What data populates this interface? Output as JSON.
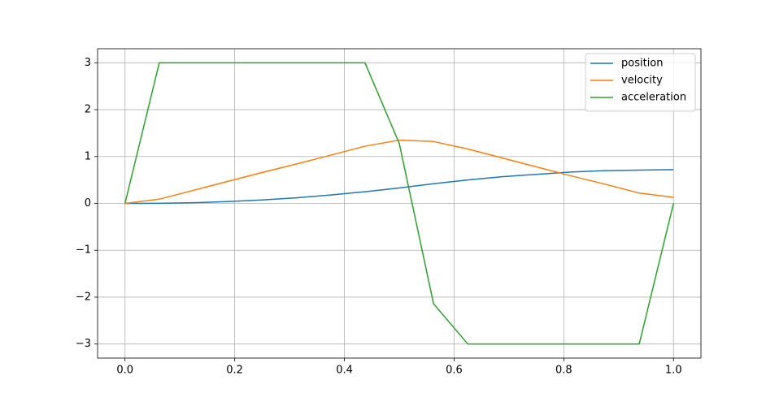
{
  "chart_data": {
    "type": "line",
    "x": [
      0,
      0.0625,
      0.125,
      0.1875,
      0.25,
      0.3125,
      0.375,
      0.4375,
      0.5,
      0.5625,
      0.625,
      0.6875,
      0.75,
      0.8125,
      0.875,
      0.9375,
      1.0
    ],
    "series": [
      {
        "name": "position",
        "color": "#1f77b4",
        "values": [
          0,
          0.003,
          0.015,
          0.038,
          0.073,
          0.12,
          0.18,
          0.25,
          0.33,
          0.42,
          0.5,
          0.57,
          0.62,
          0.67,
          0.7,
          0.71,
          0.72
        ]
      },
      {
        "name": "velocity",
        "color": "#ff7f0e",
        "values": [
          0,
          0.09,
          0.28,
          0.47,
          0.66,
          0.84,
          1.03,
          1.22,
          1.35,
          1.32,
          1.16,
          0.97,
          0.78,
          0.59,
          0.41,
          0.22,
          0.13
        ]
      },
      {
        "name": "acceleration",
        "color": "#2ca02c",
        "values": [
          0,
          3,
          3,
          3,
          3,
          3,
          3,
          3,
          1.28,
          -2.14,
          -3,
          -3,
          -3,
          -3,
          -3,
          -3,
          0
        ]
      }
    ],
    "xlim": [
      -0.05,
      1.05
    ],
    "ylim": [
      -3.3,
      3.3
    ],
    "xticks": [
      {
        "value": 0,
        "label": "0.0"
      },
      {
        "value": 0.2,
        "label": "0.2"
      },
      {
        "value": 0.4,
        "label": "0.4"
      },
      {
        "value": 0.6,
        "label": "0.6"
      },
      {
        "value": 0.8,
        "label": "0.8"
      },
      {
        "value": 1.0,
        "label": "1.0"
      }
    ],
    "yticks": [
      {
        "value": -3,
        "label": "−3"
      },
      {
        "value": -2,
        "label": "−2"
      },
      {
        "value": -1,
        "label": "−1"
      },
      0,
      1,
      2,
      3
    ],
    "grid": true,
    "legend": "upper right"
  }
}
